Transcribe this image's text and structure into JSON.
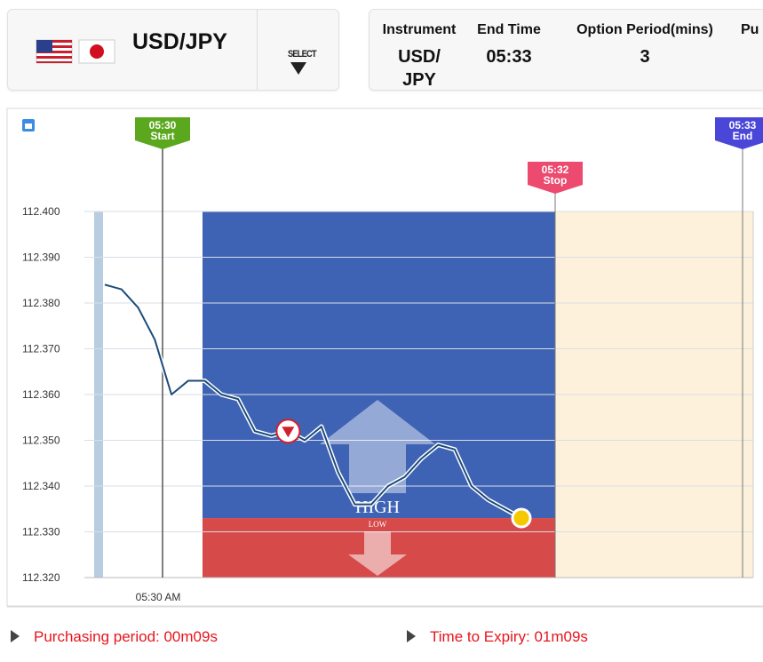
{
  "header": {
    "pair": "USD/JPY",
    "select": "SELECT"
  },
  "info": {
    "columns": [
      {
        "label": "Instrument",
        "value": "USD/ JPY"
      },
      {
        "label": "End Time",
        "value": "05:33"
      },
      {
        "label": "Option Period(mins)",
        "value": "3"
      },
      {
        "label": "Pu"
      }
    ]
  },
  "chart_data": {
    "type": "line",
    "ylim": [
      112.32,
      112.4
    ],
    "yticks": [
      {
        "value": 112.4,
        "label": "112.400"
      },
      {
        "value": 112.39,
        "label": "112.390"
      },
      {
        "value": 112.38,
        "label": "112.380"
      },
      {
        "value": 112.37,
        "label": "112.370"
      },
      {
        "value": 112.36,
        "label": "112.360"
      },
      {
        "value": 112.35,
        "label": "112.350"
      },
      {
        "value": 112.34,
        "label": "112.340"
      },
      {
        "value": 112.33,
        "label": "112.330"
      },
      {
        "value": 112.32,
        "label": "112.320"
      }
    ],
    "grid": true,
    "x_label": "05:30 AM",
    "markers": [
      {
        "time": "05:30",
        "label": "Start",
        "color": "#5ba81e"
      },
      {
        "time": "05:32",
        "label": "Stop",
        "color": "#ec4a6e"
      },
      {
        "time": "05:33",
        "label": "End",
        "color": "#4a46d8"
      }
    ],
    "zones": {
      "high": "HIGH",
      "low": "LOW",
      "high_color": "#3f63b4",
      "low_color": "#d64a4a",
      "after_color": "#fdf1dc"
    },
    "series": [
      {
        "color": "#1c4b7a",
        "values": [
          112.384,
          112.383,
          112.379,
          112.372,
          112.36,
          112.363,
          112.363,
          112.36,
          112.359,
          112.352,
          112.351,
          112.352,
          112.35,
          112.353,
          112.343,
          112.336,
          112.336,
          112.34,
          112.342,
          112.346,
          112.349,
          112.348,
          112.34,
          112.337,
          112.335,
          112.333
        ]
      }
    ]
  },
  "footer": {
    "purchasing": "Purchasing period: 00m09s",
    "expiry": "Time to Expiry: 01m09s"
  }
}
